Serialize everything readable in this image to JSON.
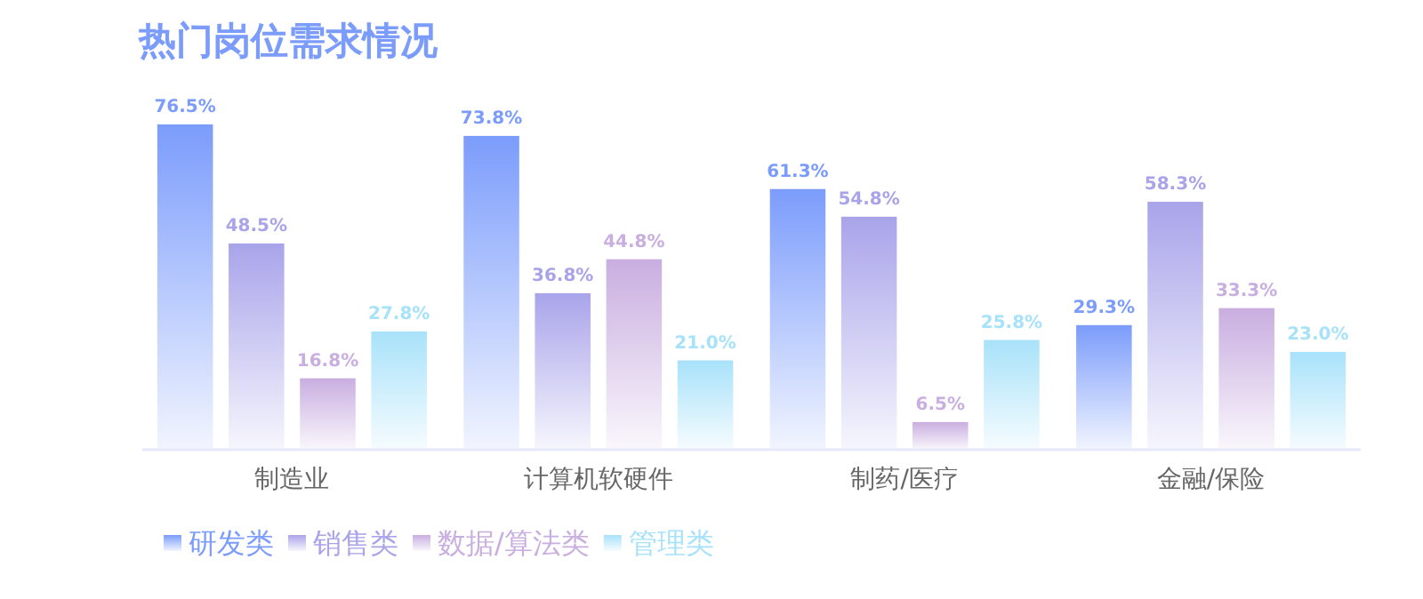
{
  "chart_data": {
    "type": "bar",
    "title": "热门岗位需求情况",
    "categories": [
      "制造业",
      "计算机软硬件",
      "制药/医疗",
      "金融/保险"
    ],
    "series": [
      {
        "name": "研发类",
        "color": "#7b9cfb",
        "values": [
          76.5,
          73.8,
          61.3,
          29.3
        ],
        "value_labels": [
          "76.5%",
          "73.8%",
          "61.3%",
          "29.3%"
        ]
      },
      {
        "name": "销售类",
        "color": "#a9a4ea",
        "values": [
          48.5,
          36.8,
          54.8,
          58.3
        ],
        "value_labels": [
          "48.5%",
          "36.8%",
          "54.8%",
          "58.3%"
        ]
      },
      {
        "name": "数据/算法类",
        "color": "#c9aee0",
        "values": [
          16.8,
          44.8,
          6.5,
          33.3
        ],
        "value_labels": [
          "16.8%",
          "44.8%",
          "6.5%",
          "33.3%"
        ]
      },
      {
        "name": "管理类",
        "color": "#a8e2fa",
        "values": [
          27.8,
          21.0,
          25.8,
          23.0
        ],
        "value_labels": [
          "27.8%",
          "21.0%",
          "25.8%",
          "23.0%"
        ]
      }
    ],
    "legend": "bottom left",
    "grid": false
  }
}
